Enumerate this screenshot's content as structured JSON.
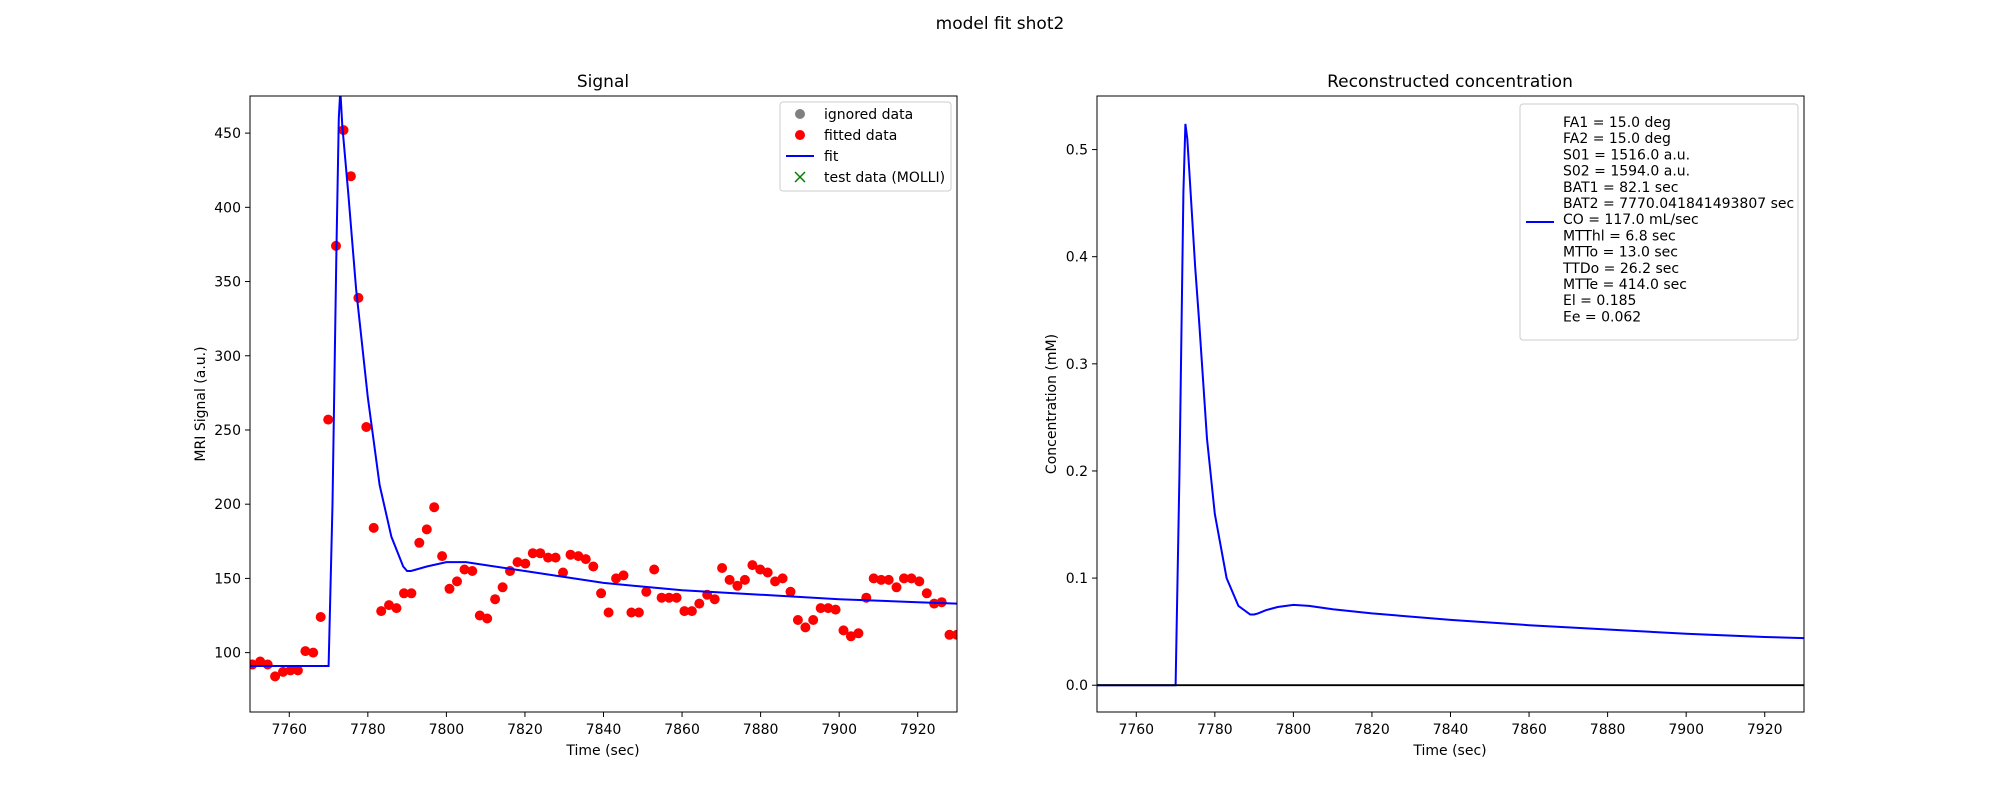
{
  "figure": {
    "suptitle": "model fit shot2"
  },
  "chart_data": [
    {
      "type": "scatter",
      "title": "Signal",
      "xlabel": "Time (sec)",
      "ylabel": "MRI Signal (a.u.)",
      "xlim": [
        7750,
        7930
      ],
      "ylim": [
        60,
        475
      ],
      "xticks": [
        7760,
        7780,
        7800,
        7820,
        7840,
        7860,
        7880,
        7900,
        7920
      ],
      "yticks": [
        100,
        150,
        200,
        250,
        300,
        350,
        400,
        450
      ],
      "legend_position": "upper-right",
      "legend": [
        {
          "label": "ignored data",
          "marker": "circle",
          "color": "#808080"
        },
        {
          "label": "fitted data",
          "marker": "circle",
          "color": "#ff0000"
        },
        {
          "label": "fit",
          "marker": "line",
          "color": "#0000ff"
        },
        {
          "label": "test data (MOLLI)",
          "marker": "x",
          "color": "#008000"
        }
      ],
      "series": [
        {
          "name": "fitted data",
          "kind": "points",
          "color": "#ff0000",
          "x": [
            7750.6,
            7752.6,
            7754.5,
            7756.4,
            7758.4,
            7760.3,
            7762.2,
            7764.1,
            7766.1,
            7768.0,
            7769.9,
            7771.9,
            7773.8,
            7775.7,
            7777.6,
            7779.6,
            7781.5,
            7783.4,
            7785.4,
            7787.3,
            7789.2,
            7791.1,
            7793.1,
            7795.0,
            7796.9,
            7798.9,
            7800.8,
            7802.7,
            7804.6,
            7806.6,
            7808.5,
            7810.4,
            7812.4,
            7814.3,
            7816.2,
            7818.1,
            7820.1,
            7822.0,
            7823.9,
            7825.9,
            7827.8,
            7829.7,
            7831.6,
            7833.6,
            7835.5,
            7837.4,
            7839.4,
            7841.3,
            7843.2,
            7845.1,
            7847.1,
            7849.0,
            7850.9,
            7852.9,
            7854.8,
            7856.7,
            7858.6,
            7860.6,
            7862.5,
            7864.4,
            7866.4,
            7868.3,
            7870.2,
            7872.1,
            7874.1,
            7876.0,
            7877.9,
            7879.9,
            7881.8,
            7883.7,
            7885.6,
            7887.6,
            7889.5,
            7891.4,
            7893.4,
            7895.3,
            7897.2,
            7899.1,
            7901.1,
            7903.0,
            7904.9,
            7906.9,
            7908.8,
            7910.7,
            7912.6,
            7914.6,
            7916.5,
            7918.4,
            7920.4,
            7922.3,
            7924.2,
            7926.1,
            7928.1,
            7930.0
          ],
          "y": [
            92,
            94,
            92,
            84,
            87,
            88,
            88,
            101,
            100,
            124,
            257,
            374,
            452,
            421,
            339,
            252,
            184,
            128,
            132,
            130,
            140,
            140,
            174,
            183,
            198,
            165,
            143,
            148,
            156,
            155,
            125,
            123,
            136,
            144,
            155,
            161,
            160,
            167,
            167,
            164,
            164,
            154,
            166,
            165,
            163,
            158,
            140,
            127,
            150,
            152,
            127,
            127,
            141,
            156,
            137,
            137,
            137,
            128,
            128,
            133,
            139,
            136,
            157,
            149,
            145,
            149,
            159,
            156,
            154,
            148,
            150,
            141,
            122,
            117,
            122,
            130,
            130,
            129,
            115,
            111,
            113,
            137,
            150,
            149,
            149,
            144,
            150,
            150,
            148,
            140,
            133,
            134,
            112,
            112
          ]
        },
        {
          "name": "fit",
          "kind": "line",
          "color": "#0000ff",
          "x": [
            7750,
            7770,
            7771,
            7772,
            7772.6,
            7773,
            7773.5,
            7775,
            7777,
            7780,
            7783,
            7786,
            7789,
            7790,
            7791,
            7795,
            7800,
            7805,
            7810,
            7820,
            7840,
            7860,
            7880,
            7900,
            7920,
            7930
          ],
          "y": [
            91,
            91,
            200,
            370,
            460,
            479,
            455,
            410,
            345,
            272,
            213,
            178,
            158,
            155,
            155,
            158,
            161,
            161,
            159,
            155,
            147,
            142,
            139,
            136,
            134,
            133
          ]
        }
      ]
    },
    {
      "type": "line",
      "title": "Reconstructed concentration",
      "xlabel": "Time (sec)",
      "ylabel": "Concentration (mM)",
      "xlim": [
        7750,
        7930
      ],
      "ylim": [
        -0.025,
        0.55
      ],
      "xticks": [
        7760,
        7780,
        7800,
        7820,
        7840,
        7860,
        7880,
        7900,
        7920
      ],
      "yticks": [
        0.0,
        0.1,
        0.2,
        0.3,
        0.4,
        0.5
      ],
      "yticklabels": [
        "0.0",
        "0.1",
        "0.2",
        "0.3",
        "0.4",
        "0.5"
      ],
      "legend_position": "upper-right",
      "legend_text": [
        "FA1 = 15.0 deg",
        "FA2 = 15.0 deg",
        "S01 = 1516.0 a.u.",
        "S02 = 1594.0 a.u.",
        "BAT1 = 82.1 sec",
        "BAT2 = 7770.041841493807 sec",
        "CO = 117.0 mL/sec",
        "MTThl = 6.8 sec",
        "MTTo = 13.0 sec",
        "TTDo = 26.2 sec",
        "MTTe = 414.0 sec",
        "El = 0.185",
        "Ee = 0.062"
      ],
      "series": [
        {
          "kind": "line",
          "color": "#0000ff",
          "x": [
            7750,
            7770,
            7771,
            7772,
            7772.5,
            7773,
            7773.5,
            7775,
            7776,
            7778,
            7780,
            7783,
            7786,
            7789,
            7790,
            7791,
            7793,
            7796,
            7800,
            7804,
            7810,
            7820,
            7840,
            7860,
            7880,
            7900,
            7920,
            7930
          ],
          "y": [
            0,
            0,
            0.2,
            0.46,
            0.524,
            0.51,
            0.48,
            0.39,
            0.34,
            0.23,
            0.16,
            0.1,
            0.074,
            0.066,
            0.066,
            0.067,
            0.07,
            0.073,
            0.075,
            0.074,
            0.071,
            0.067,
            0.061,
            0.056,
            0.052,
            0.048,
            0.045,
            0.044
          ]
        },
        {
          "kind": "line",
          "color": "#000000",
          "x": [
            7750,
            7930
          ],
          "y": [
            0,
            0
          ]
        }
      ]
    }
  ]
}
